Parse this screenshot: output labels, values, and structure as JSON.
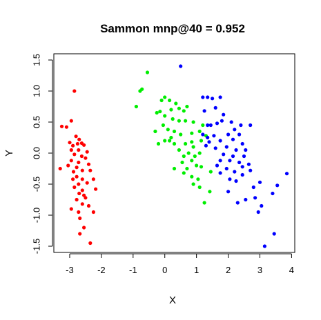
{
  "chart_data": {
    "type": "scatter",
    "title": "Sammon mnp@40 = 0.952",
    "xlabel": "X",
    "ylabel": "Y",
    "xlim": [
      -3.5,
      4.1
    ],
    "ylim": [
      -1.6,
      1.6
    ],
    "xticks": [
      -3,
      -2,
      -1,
      0,
      1,
      2,
      3,
      4
    ],
    "yticks": [
      -1.5,
      -1.0,
      -0.5,
      0.0,
      0.5,
      1.0,
      1.5
    ],
    "xtick_labels": [
      "-3",
      "-2",
      "-1",
      "0",
      "1",
      "2",
      "3",
      "4"
    ],
    "ytick_labels": [
      "-1.5",
      "-1.0",
      "-0.5",
      "0.0",
      "0.5",
      "1.0",
      "1.5"
    ],
    "grid": false,
    "legend": false,
    "series": [
      {
        "color": "#ff0000",
        "points": [
          [
            -2.85,
            1.0
          ],
          [
            -2.95,
            0.52
          ],
          [
            -3.25,
            0.43
          ],
          [
            -3.1,
            0.42
          ],
          [
            -2.8,
            0.27
          ],
          [
            -2.7,
            0.22
          ],
          [
            -3.0,
            0.17
          ],
          [
            -2.9,
            0.12
          ],
          [
            -2.75,
            0.15
          ],
          [
            -2.62,
            0.16
          ],
          [
            -2.55,
            0.13
          ],
          [
            -2.95,
            0.05
          ],
          [
            -2.72,
            0.05
          ],
          [
            -2.45,
            0.02
          ],
          [
            -2.85,
            -0.02
          ],
          [
            -2.62,
            -0.05
          ],
          [
            -2.95,
            -0.12
          ],
          [
            -2.72,
            -0.15
          ],
          [
            -2.5,
            -0.08
          ],
          [
            -2.4,
            -0.18
          ],
          [
            -2.78,
            -0.23
          ],
          [
            -3.05,
            -0.2
          ],
          [
            -3.3,
            -0.25
          ],
          [
            -2.88,
            -0.3
          ],
          [
            -2.6,
            -0.28
          ],
          [
            -2.35,
            -0.28
          ],
          [
            -2.78,
            -0.38
          ],
          [
            -2.6,
            -0.42
          ],
          [
            -2.9,
            -0.42
          ],
          [
            -2.45,
            -0.48
          ],
          [
            -2.25,
            -0.42
          ],
          [
            -2.72,
            -0.5
          ],
          [
            -2.85,
            -0.55
          ],
          [
            -2.6,
            -0.6
          ],
          [
            -2.7,
            -0.65
          ],
          [
            -2.55,
            -0.68
          ],
          [
            -2.5,
            -0.72
          ],
          [
            -2.18,
            -0.58
          ],
          [
            -2.78,
            -0.75
          ],
          [
            -2.6,
            -0.82
          ],
          [
            -2.95,
            -0.9
          ],
          [
            -2.72,
            -0.95
          ],
          [
            -2.25,
            -0.95
          ],
          [
            -2.4,
            -0.85
          ],
          [
            -2.68,
            -1.05
          ],
          [
            -2.55,
            -1.2
          ],
          [
            -2.68,
            -1.3
          ],
          [
            -2.35,
            -1.45
          ]
        ]
      },
      {
        "color": "#00ee00",
        "points": [
          [
            -0.55,
            1.3
          ],
          [
            -0.72,
            1.03
          ],
          [
            -0.78,
            1.0
          ],
          [
            -0.9,
            0.75
          ],
          [
            0.0,
            0.9
          ],
          [
            0.15,
            0.85
          ],
          [
            -0.1,
            0.85
          ],
          [
            0.35,
            0.8
          ],
          [
            0.45,
            0.72
          ],
          [
            0.7,
            0.75
          ],
          [
            0.2,
            0.7
          ],
          [
            0.6,
            0.68
          ],
          [
            -0.25,
            0.65
          ],
          [
            -0.15,
            0.67
          ],
          [
            0.0,
            0.6
          ],
          [
            0.25,
            0.55
          ],
          [
            0.45,
            0.52
          ],
          [
            0.65,
            0.52
          ],
          [
            0.9,
            0.5
          ],
          [
            1.2,
            0.45
          ],
          [
            -0.05,
            0.45
          ],
          [
            0.1,
            0.38
          ],
          [
            0.3,
            0.35
          ],
          [
            0.5,
            0.3
          ],
          [
            -0.3,
            0.35
          ],
          [
            0.85,
            0.32
          ],
          [
            1.1,
            0.35
          ],
          [
            1.3,
            0.28
          ],
          [
            0.2,
            0.25
          ],
          [
            0.0,
            0.2
          ],
          [
            0.15,
            0.2
          ],
          [
            0.3,
            0.15
          ],
          [
            -0.2,
            0.15
          ],
          [
            0.65,
            0.15
          ],
          [
            0.85,
            0.18
          ],
          [
            0.9,
            0.1
          ],
          [
            1.15,
            0.2
          ],
          [
            0.45,
            0.05
          ],
          [
            0.75,
            0.0
          ],
          [
            1.1,
            0.0
          ],
          [
            0.6,
            -0.05
          ],
          [
            0.95,
            -0.05
          ],
          [
            0.55,
            -0.15
          ],
          [
            0.85,
            -0.12
          ],
          [
            1.0,
            -0.2
          ],
          [
            1.15,
            -0.22
          ],
          [
            0.7,
            -0.25
          ],
          [
            0.3,
            -0.25
          ],
          [
            0.6,
            -0.32
          ],
          [
            0.85,
            -0.38
          ],
          [
            1.05,
            -0.42
          ],
          [
            1.45,
            -0.3
          ],
          [
            0.9,
            -0.5
          ],
          [
            1.1,
            -0.55
          ],
          [
            1.42,
            -0.62
          ],
          [
            1.25,
            -0.8
          ]
        ]
      },
      {
        "color": "#0000ff",
        "points": [
          [
            0.5,
            1.4
          ],
          [
            1.2,
            0.9
          ],
          [
            1.35,
            0.9
          ],
          [
            1.5,
            0.88
          ],
          [
            1.75,
            0.9
          ],
          [
            1.6,
            0.73
          ],
          [
            1.25,
            0.68
          ],
          [
            1.85,
            0.62
          ],
          [
            1.35,
            0.45
          ],
          [
            1.45,
            0.45
          ],
          [
            1.65,
            0.48
          ],
          [
            1.8,
            0.52
          ],
          [
            2.1,
            0.5
          ],
          [
            2.4,
            0.45
          ],
          [
            2.7,
            0.45
          ],
          [
            2.2,
            0.38
          ],
          [
            1.2,
            0.3
          ],
          [
            1.35,
            0.25
          ],
          [
            1.55,
            0.28
          ],
          [
            2.0,
            0.3
          ],
          [
            2.35,
            0.3
          ],
          [
            1.4,
            0.18
          ],
          [
            1.75,
            0.2
          ],
          [
            2.15,
            0.22
          ],
          [
            2.45,
            0.15
          ],
          [
            1.3,
            0.12
          ],
          [
            1.6,
            0.08
          ],
          [
            1.95,
            0.1
          ],
          [
            2.25,
            0.05
          ],
          [
            2.55,
            0.05
          ],
          [
            1.85,
            -0.02
          ],
          [
            2.15,
            -0.05
          ],
          [
            2.5,
            -0.05
          ],
          [
            1.75,
            -0.12
          ],
          [
            2.05,
            -0.12
          ],
          [
            2.35,
            -0.15
          ],
          [
            2.65,
            -0.18
          ],
          [
            1.65,
            -0.2
          ],
          [
            2.45,
            -0.22
          ],
          [
            2.7,
            -0.28
          ],
          [
            1.95,
            -0.25
          ],
          [
            2.2,
            -0.3
          ],
          [
            2.45,
            -0.35
          ],
          [
            1.75,
            -0.32
          ],
          [
            3.85,
            -0.33
          ],
          [
            2.05,
            -0.42
          ],
          [
            2.25,
            -0.45
          ],
          [
            3.0,
            -0.47
          ],
          [
            3.55,
            -0.52
          ],
          [
            2.8,
            -0.55
          ],
          [
            3.4,
            -0.65
          ],
          [
            2.0,
            -0.62
          ],
          [
            2.85,
            -0.72
          ],
          [
            2.55,
            -0.75
          ],
          [
            2.3,
            -0.8
          ],
          [
            3.05,
            -0.85
          ],
          [
            2.95,
            -0.95
          ],
          [
            3.45,
            -1.3
          ],
          [
            3.15,
            -1.5
          ]
        ]
      }
    ]
  }
}
